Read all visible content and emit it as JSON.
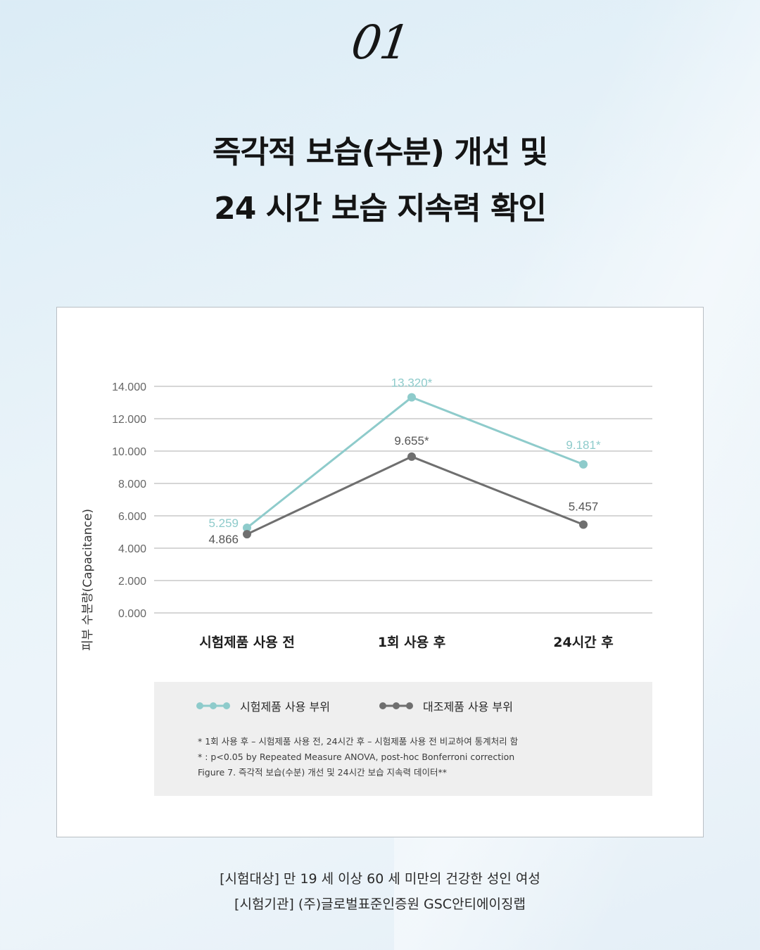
{
  "header": {
    "number": "01",
    "title_line1": "즉각적 보습(수분) 개선 및",
    "title_line2": "24 시간 보습 지속력 확인"
  },
  "chart_data": {
    "type": "line",
    "ylabel": "피부 수분량(Capacitance)",
    "xlabel": "",
    "ylim": [
      0,
      14
    ],
    "yticks": [
      "0.000",
      "2.000",
      "4.000",
      "6.000",
      "8.000",
      "10.000",
      "12.000",
      "14.000"
    ],
    "grid": true,
    "categories": [
      "시험제품 사용 전",
      "1회 사용 후",
      "24시간 후"
    ],
    "series": [
      {
        "name": "시험제품 사용 부위",
        "color": "#8ecbcb",
        "values": [
          5.259,
          13.32,
          9.181
        ],
        "labels": [
          "5.259",
          "13.320*",
          "9.181*"
        ]
      },
      {
        "name": "대조제품 사용 부위",
        "color": "#6f6f6f",
        "values": [
          4.866,
          9.655,
          5.457
        ],
        "labels": [
          "4.866",
          "9.655*",
          "5.457"
        ]
      }
    ]
  },
  "legend": {
    "series_a": "시험제품 사용 부위",
    "series_b": "대조제품 사용 부위"
  },
  "notes": {
    "line1": "* 1회 사용 후 – 시험제품 사용 전, 24시간 후 – 시험제품 사용 전 비교하여 통계처리 함",
    "line2": "* : p<0.05 by Repeated Measure ANOVA, post-hoc Bonferroni correction",
    "line3": "Figure 7. 즉각적 보습(수분) 개선 및 24시간 보습 지속력 데이터**"
  },
  "footer": {
    "line1": "[시험대상] 만 19 세 이상 60 세 미만의 건강한 성인 여성",
    "line2": "[시험기관] (주)글로벌표준인증원 GSC안티에이징랩"
  }
}
